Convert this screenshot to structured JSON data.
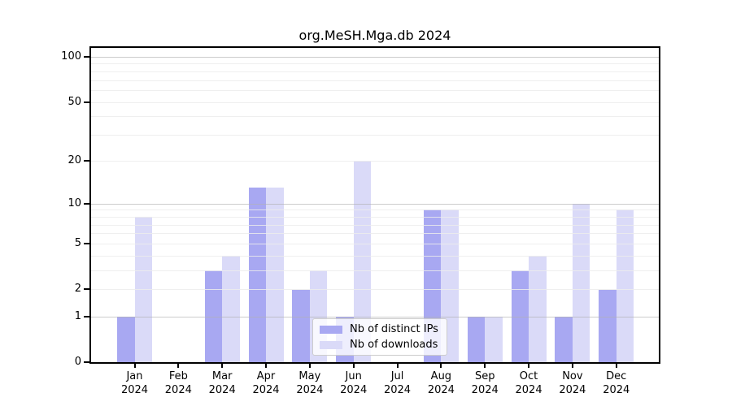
{
  "figure": {
    "title": "org.MeSH.Mga.db 2024"
  },
  "colors": {
    "ips": "#a8a8f2",
    "downloads": "#dadaf8",
    "grid_minor": "#ececec",
    "grid_major": "#b0b0b0",
    "axis": "#000000",
    "legend_border": "#cccccc"
  },
  "legend": {
    "items": [
      {
        "id": "ips",
        "label": "Nb of distinct IPs"
      },
      {
        "id": "downloads",
        "label": "Nb of downloads"
      }
    ]
  },
  "chart_data": {
    "type": "bar",
    "title": "org.MeSH.Mga.db 2024",
    "categories": [
      "Jan",
      "Feb",
      "Mar",
      "Apr",
      "May",
      "Jun",
      "Jul",
      "Aug",
      "Sep",
      "Oct",
      "Nov",
      "Dec"
    ],
    "x_year_label": "2024",
    "series": [
      {
        "name": "Nb of distinct IPs",
        "color_key": "ips",
        "values": [
          1,
          0,
          3,
          13,
          2,
          1,
          0,
          9,
          1,
          3,
          1,
          2
        ]
      },
      {
        "name": "Nb of downloads",
        "color_key": "downloads",
        "values": [
          8,
          0,
          4,
          13,
          3,
          20,
          0,
          9,
          1,
          4,
          10,
          9
        ]
      }
    ],
    "xlabel": "",
    "ylabel": "",
    "y_ticks": [
      0,
      1,
      2,
      5,
      10,
      20,
      50,
      100
    ],
    "y_major_gridlines": [
      1,
      10,
      100
    ],
    "y_minor_gridlines": [
      2,
      3,
      4,
      5,
      6,
      7,
      8,
      9,
      20,
      30,
      40,
      50,
      60,
      70,
      80,
      90
    ],
    "y_scale": "log10(value+1)",
    "ylim": [
      0,
      115
    ],
    "grid": "on",
    "legend_position": "lower center inside"
  }
}
